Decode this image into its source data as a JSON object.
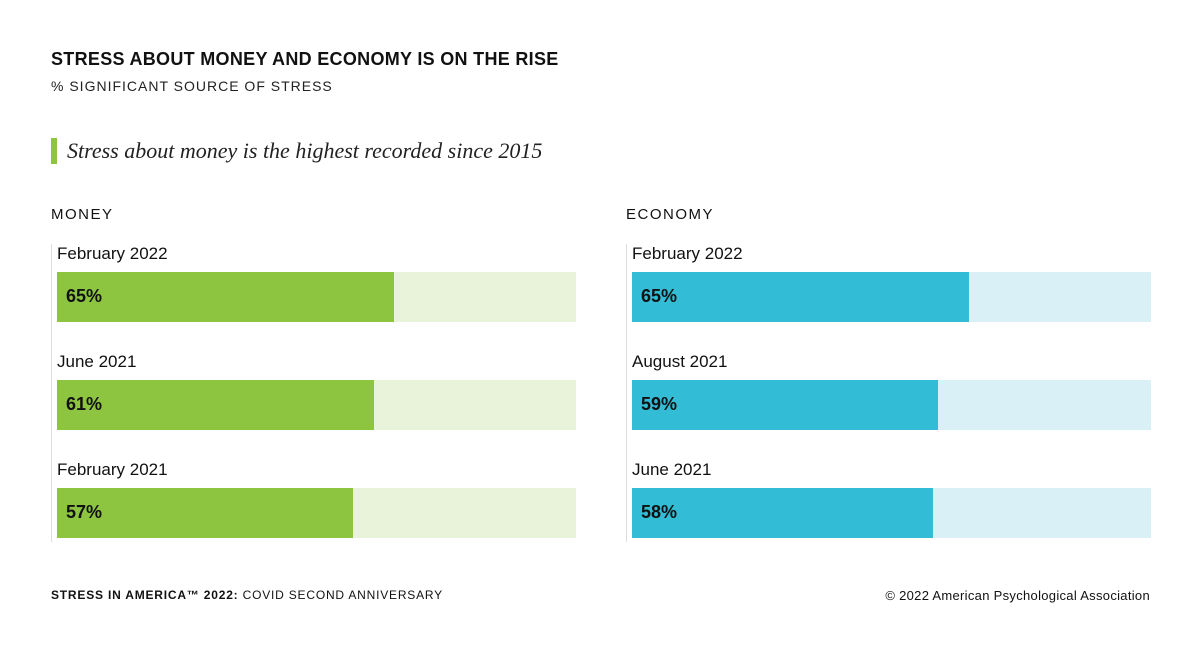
{
  "header": {
    "title": "STRESS ABOUT MONEY AND ECONOMY IS ON THE RISE",
    "subtitle": "% SIGNIFICANT SOURCE OF STRESS",
    "callout": "Stress about money is the highest recorded since 2015"
  },
  "colors": {
    "money_fill": "#8dc540",
    "money_track": "#e8f3da",
    "economy_fill": "#33bcd6",
    "economy_track": "#d9f1f6",
    "accent_bar": "#8dc540"
  },
  "chart_data": [
    {
      "type": "bar",
      "title": "MONEY",
      "categories": [
        "February 2022",
        "June 2021",
        "February 2021"
      ],
      "values": [
        65,
        61,
        57
      ],
      "labels": [
        "65%",
        "61%",
        "57%"
      ],
      "xlim": [
        0,
        100
      ]
    },
    {
      "type": "bar",
      "title": "ECONOMY",
      "categories": [
        "February 2022",
        "August 2021",
        "June 2021"
      ],
      "values": [
        65,
        59,
        58
      ],
      "labels": [
        "65%",
        "59%",
        "58%"
      ],
      "xlim": [
        0,
        100
      ]
    }
  ],
  "footer": {
    "source_bold": "STRESS IN AMERICA™ 2022:",
    "source_rest": " COVID SECOND ANNIVERSARY",
    "copyright": "© 2022 American Psychological Association"
  }
}
